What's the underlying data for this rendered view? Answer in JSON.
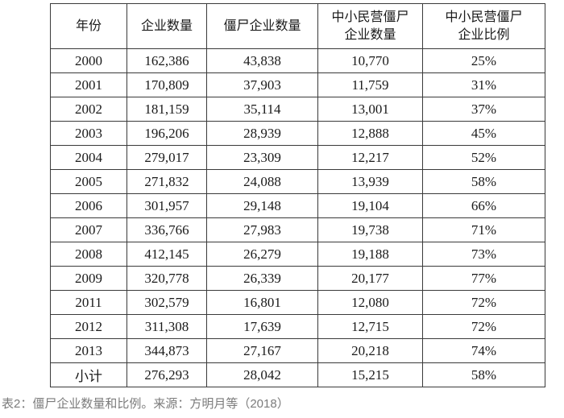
{
  "caption": {
    "text": "表2：僵尸企业数量和比例。来源：方明月等（2018）"
  },
  "chart_data": {
    "type": "table",
    "title": "僵尸企业数量和比例",
    "source": "方明月等（2018）",
    "columns": [
      "年份",
      "企业数量",
      "僵尸企业数量",
      "中小民营僵尸企业数量",
      "中小民营僵尸企业比例"
    ],
    "rows": [
      [
        "2000",
        "162,386",
        "43,838",
        "10,770",
        "25%"
      ],
      [
        "2001",
        "170,809",
        "37,903",
        "11,759",
        "31%"
      ],
      [
        "2002",
        "181,159",
        "35,114",
        "13,001",
        "37%"
      ],
      [
        "2003",
        "196,206",
        "28,939",
        "12,888",
        "45%"
      ],
      [
        "2004",
        "279,017",
        "23,309",
        "12,217",
        "52%"
      ],
      [
        "2005",
        "271,832",
        "24,088",
        "13,939",
        "58%"
      ],
      [
        "2006",
        "301,957",
        "29,148",
        "19,104",
        "66%"
      ],
      [
        "2007",
        "336,766",
        "27,983",
        "19,738",
        "71%"
      ],
      [
        "2008",
        "412,145",
        "26,279",
        "19,188",
        "73%"
      ],
      [
        "2009",
        "320,778",
        "26,339",
        "20,177",
        "77%"
      ],
      [
        "2011",
        "302,579",
        "16,801",
        "12,080",
        "72%"
      ],
      [
        "2012",
        "311,308",
        "17,639",
        "12,715",
        "72%"
      ],
      [
        "2013",
        "344,873",
        "27,167",
        "20,218",
        "74%"
      ],
      [
        "小计",
        "276,293",
        "28,042",
        "15,215",
        "58%"
      ]
    ]
  },
  "colors": {
    "border": "#3a3a3a",
    "text": "#1a1a1a",
    "caption": "#7b7b7b",
    "background": "#ffffff"
  }
}
